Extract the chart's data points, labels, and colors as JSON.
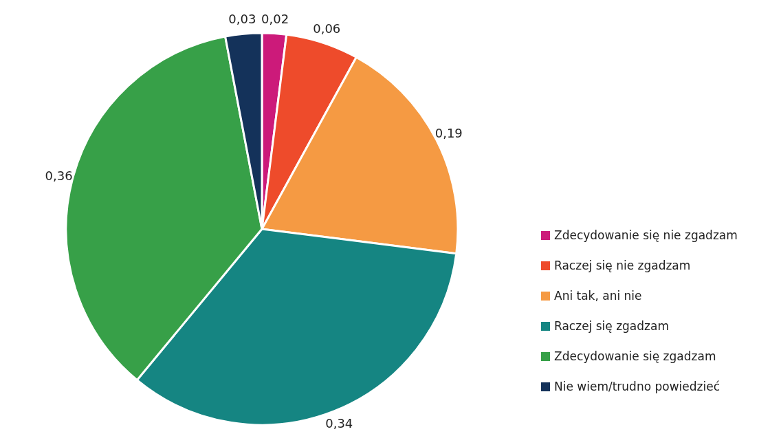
{
  "chart_data": {
    "type": "pie",
    "categories": [
      "Zdecydowanie się nie zgadzam",
      "Raczej się nie zgadzam",
      "Ani tak, ani nie",
      "Raczej się zgadzam",
      "Zdecydowanie się zgadzam",
      "Nie wiem/trudno powiedzieć"
    ],
    "values": [
      0.02,
      0.06,
      0.19,
      0.34,
      0.36,
      0.03
    ],
    "colors": [
      "#cc1a7a",
      "#ee4b2b",
      "#f59a43",
      "#158582",
      "#37a048",
      "#14325a"
    ],
    "value_labels": [
      "0,02",
      "0,06",
      "0,19",
      "0,34",
      "0,36",
      "0,03"
    ],
    "legend": "right"
  }
}
